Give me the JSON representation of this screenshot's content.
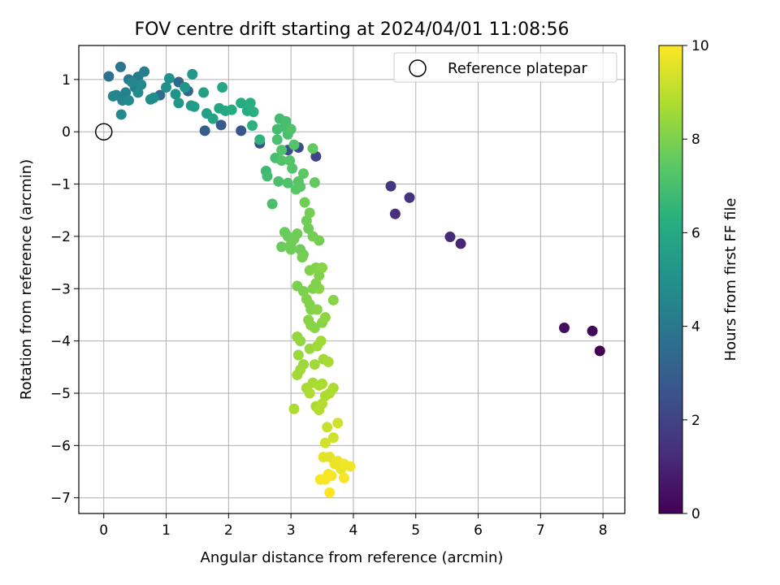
{
  "chart_data": {
    "type": "scatter",
    "title": "FOV centre drift starting at 2024/04/01 11:08:56",
    "xlabel": "Angular distance from reference (arcmin)",
    "ylabel": "Rotation from reference (arcmin)",
    "xlim": [
      -0.4,
      8.35
    ],
    "ylim": [
      -7.3,
      1.65
    ],
    "xticks": [
      0,
      1,
      2,
      3,
      4,
      5,
      6,
      7,
      8
    ],
    "yticks": [
      1,
      0,
      -1,
      -2,
      -3,
      -4,
      -5,
      -6,
      -7
    ],
    "grid": true,
    "legend": {
      "placement": "top-right",
      "entries": [
        "Reference platepar"
      ]
    },
    "reference_point": {
      "x": 0,
      "y": 0
    },
    "colorbar": {
      "label": "Hours from first FF file",
      "range": [
        0,
        10
      ],
      "ticks": [
        0,
        2,
        4,
        6,
        8,
        10
      ],
      "colormap": "viridis"
    },
    "points": [
      [
        7.95,
        -4.19,
        0.0
      ],
      [
        7.83,
        -3.81,
        0.2
      ],
      [
        7.38,
        -3.75,
        0.4
      ],
      [
        5.72,
        -2.14,
        1.1
      ],
      [
        5.55,
        -2.01,
        1.2
      ],
      [
        4.9,
        -1.26,
        1.5
      ],
      [
        4.67,
        -1.57,
        1.4
      ],
      [
        4.6,
        -1.04,
        1.6
      ],
      [
        3.4,
        -0.47,
        2.1
      ],
      [
        3.12,
        -0.3,
        2.3
      ],
      [
        2.95,
        -0.35,
        2.4
      ],
      [
        2.5,
        -0.22,
        2.5
      ],
      [
        2.2,
        0.02,
        2.7
      ],
      [
        1.88,
        0.13,
        2.9
      ],
      [
        1.62,
        0.02,
        3.0
      ],
      [
        1.35,
        0.78,
        3.3
      ],
      [
        1.2,
        0.95,
        3.4
      ],
      [
        0.9,
        0.7,
        3.6
      ],
      [
        0.08,
        1.06,
        3.8
      ],
      [
        0.27,
        1.24,
        3.9
      ],
      [
        0.4,
        1.0,
        4.0
      ],
      [
        0.55,
        1.05,
        4.1
      ],
      [
        0.65,
        1.15,
        4.2
      ],
      [
        0.5,
        0.85,
        4.3
      ],
      [
        0.35,
        0.75,
        4.4
      ],
      [
        0.2,
        0.7,
        4.5
      ],
      [
        0.3,
        0.6,
        4.5
      ],
      [
        0.45,
        0.95,
        4.6
      ],
      [
        0.6,
        0.9,
        4.7
      ],
      [
        0.28,
        0.33,
        4.8
      ],
      [
        0.15,
        0.68,
        4.6
      ],
      [
        0.4,
        0.6,
        4.7
      ],
      [
        0.55,
        0.75,
        4.8
      ],
      [
        0.8,
        0.65,
        4.9
      ],
      [
        0.75,
        0.62,
        4.9
      ],
      [
        1.0,
        0.85,
        5.0
      ],
      [
        1.15,
        0.72,
        5.1
      ],
      [
        1.3,
        0.85,
        5.2
      ],
      [
        1.05,
        1.02,
        5.1
      ],
      [
        1.42,
        1.1,
        5.3
      ],
      [
        1.2,
        0.55,
        5.3
      ],
      [
        1.4,
        0.5,
        5.4
      ],
      [
        1.45,
        0.48,
        5.5
      ],
      [
        1.6,
        0.75,
        5.6
      ],
      [
        1.65,
        0.35,
        5.7
      ],
      [
        1.75,
        0.25,
        5.8
      ],
      [
        1.85,
        0.45,
        5.9
      ],
      [
        1.9,
        0.85,
        6.0
      ],
      [
        1.95,
        0.4,
        6.0
      ],
      [
        2.05,
        0.42,
        6.1
      ],
      [
        2.2,
        0.55,
        6.2
      ],
      [
        2.3,
        0.4,
        6.2
      ],
      [
        2.35,
        0.55,
        6.3
      ],
      [
        2.4,
        0.38,
        6.3
      ],
      [
        2.38,
        0.12,
        6.4
      ],
      [
        2.5,
        -0.15,
        6.5
      ],
      [
        2.6,
        -0.75,
        6.8
      ],
      [
        2.62,
        -0.85,
        6.9
      ],
      [
        2.7,
        -1.38,
        7.1
      ],
      [
        2.75,
        -0.5,
        7.0
      ],
      [
        2.8,
        -0.95,
        7.1
      ],
      [
        2.85,
        -0.55,
        7.2
      ],
      [
        2.95,
        -0.98,
        7.2
      ],
      [
        2.78,
        0.05,
        6.9
      ],
      [
        2.82,
        0.25,
        6.9
      ],
      [
        2.9,
        0.1,
        7.0
      ],
      [
        2.92,
        0.2,
        7.0
      ],
      [
        2.95,
        -0.05,
        7.1
      ],
      [
        3.0,
        0.05,
        7.2
      ],
      [
        3.05,
        -0.25,
        7.3
      ],
      [
        2.98,
        -0.55,
        7.3
      ],
      [
        3.02,
        -0.7,
        7.3
      ],
      [
        3.08,
        -1.1,
        7.4
      ],
      [
        3.12,
        -0.95,
        7.4
      ],
      [
        3.15,
        -1.05,
        7.4
      ],
      [
        3.2,
        -0.8,
        7.5
      ],
      [
        3.35,
        -0.32,
        7.6
      ],
      [
        3.38,
        -0.97,
        7.6
      ],
      [
        2.85,
        -0.35,
        7.2
      ],
      [
        2.78,
        -0.15,
        7.1
      ],
      [
        2.9,
        -1.92,
        7.7
      ],
      [
        2.95,
        -2.0,
        7.7
      ],
      [
        2.85,
        -2.2,
        7.7
      ],
      [
        3.0,
        -2.15,
        7.8
      ],
      [
        3.05,
        -2.05,
        7.8
      ],
      [
        3.1,
        -1.95,
        7.8
      ],
      [
        3.15,
        -2.25,
        7.8
      ],
      [
        3.2,
        -2.35,
        7.8
      ],
      [
        3.25,
        -1.7,
        7.8
      ],
      [
        3.3,
        -1.55,
        7.9
      ],
      [
        3.35,
        -2.0,
        7.9
      ],
      [
        3.45,
        -2.08,
        7.9
      ],
      [
        3.22,
        -1.35,
        7.8
      ],
      [
        3.28,
        -1.85,
        7.8
      ],
      [
        3.0,
        -2.25,
        7.8
      ],
      [
        3.18,
        -2.4,
        7.9
      ],
      [
        3.1,
        -2.95,
        8.0
      ],
      [
        3.2,
        -3.05,
        8.0
      ],
      [
        3.25,
        -3.2,
        8.1
      ],
      [
        3.3,
        -3.3,
        8.1
      ],
      [
        3.35,
        -3.0,
        8.1
      ],
      [
        3.4,
        -2.6,
        8.1
      ],
      [
        3.45,
        -2.75,
        8.1
      ],
      [
        3.5,
        -2.6,
        8.2
      ],
      [
        3.45,
        -3.0,
        8.2
      ],
      [
        3.3,
        -2.65,
        8.1
      ],
      [
        3.32,
        -3.4,
        8.1
      ],
      [
        3.38,
        -3.75,
        8.2
      ],
      [
        3.42,
        -3.4,
        8.2
      ],
      [
        3.5,
        -3.65,
        8.2
      ],
      [
        3.55,
        -3.55,
        8.3
      ],
      [
        3.28,
        -3.6,
        8.2
      ],
      [
        3.32,
        -3.7,
        8.2
      ],
      [
        3.68,
        -3.22,
        8.2
      ],
      [
        3.4,
        -2.9,
        8.1
      ],
      [
        3.1,
        -3.92,
        8.4
      ],
      [
        3.15,
        -4.0,
        8.4
      ],
      [
        3.12,
        -4.27,
        8.5
      ],
      [
        3.2,
        -4.45,
        8.5
      ],
      [
        3.3,
        -4.15,
        8.5
      ],
      [
        3.38,
        -4.45,
        8.6
      ],
      [
        3.42,
        -4.1,
        8.6
      ],
      [
        3.48,
        -4.0,
        8.6
      ],
      [
        3.52,
        -4.35,
        8.6
      ],
      [
        3.6,
        -4.4,
        8.7
      ],
      [
        3.15,
        -4.55,
        8.6
      ],
      [
        3.1,
        -4.65,
        8.6
      ],
      [
        3.25,
        -4.9,
        8.7
      ],
      [
        3.35,
        -4.8,
        8.7
      ],
      [
        3.45,
        -4.85,
        8.8
      ],
      [
        3.5,
        -4.82,
        8.8
      ],
      [
        3.55,
        -5.05,
        8.8
      ],
      [
        3.62,
        -5.0,
        8.8
      ],
      [
        3.68,
        -4.9,
        8.8
      ],
      [
        3.4,
        -5.25,
        8.8
      ],
      [
        3.45,
        -5.32,
        8.9
      ],
      [
        3.5,
        -5.2,
        8.9
      ],
      [
        3.05,
        -5.3,
        8.8
      ],
      [
        3.3,
        -5.0,
        8.8
      ],
      [
        3.58,
        -5.65,
        9.2
      ],
      [
        3.55,
        -5.95,
        9.3
      ],
      [
        3.68,
        -5.85,
        9.3
      ],
      [
        3.75,
        -5.57,
        9.3
      ],
      [
        3.52,
        -6.22,
        9.6
      ],
      [
        3.62,
        -6.22,
        9.6
      ],
      [
        3.7,
        -6.35,
        9.7
      ],
      [
        3.75,
        -6.3,
        9.7
      ],
      [
        3.8,
        -6.45,
        9.7
      ],
      [
        3.85,
        -6.35,
        9.8
      ],
      [
        3.95,
        -6.4,
        9.8
      ],
      [
        3.6,
        -6.55,
        9.8
      ],
      [
        3.65,
        -6.58,
        9.9
      ],
      [
        3.55,
        -6.65,
        9.9
      ],
      [
        3.47,
        -6.65,
        9.9
      ],
      [
        3.85,
        -6.62,
        9.9
      ],
      [
        3.62,
        -6.9,
        10.0
      ]
    ]
  }
}
